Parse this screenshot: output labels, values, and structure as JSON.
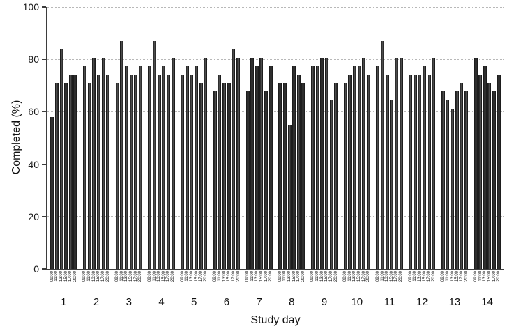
{
  "chart_data": {
    "type": "bar",
    "title": "",
    "xlabel": "Study day",
    "ylabel": "Completed (%)",
    "ylim": [
      0,
      100
    ],
    "yticks": [
      0,
      20,
      40,
      60,
      80,
      100
    ],
    "grid": "horizontal dotted gridlines at every y tick",
    "legend": "none",
    "bar_color": "#333333",
    "background": "#ffffff",
    "times_per_day": [
      "09:00",
      "11:00",
      "13:00",
      "15:00",
      "17:00",
      "20:00"
    ],
    "categories": [
      "1",
      "2",
      "3",
      "4",
      "5",
      "6",
      "7",
      "8",
      "9",
      "10",
      "11",
      "12",
      "13",
      "14"
    ],
    "days": [
      {
        "day": "1",
        "values": [
          58.1,
          71.0,
          83.9,
          71.0,
          74.2,
          74.2
        ]
      },
      {
        "day": "2",
        "values": [
          77.4,
          71.0,
          80.6,
          74.2,
          80.6,
          74.2
        ]
      },
      {
        "day": "3",
        "values": [
          71.0,
          87.1,
          77.4,
          74.2,
          74.2,
          77.4
        ]
      },
      {
        "day": "4",
        "values": [
          77.4,
          87.1,
          74.2,
          77.4,
          74.2,
          80.6
        ]
      },
      {
        "day": "5",
        "values": [
          74.2,
          77.4,
          74.2,
          77.4,
          71.0,
          80.6
        ]
      },
      {
        "day": "6",
        "values": [
          67.7,
          74.2,
          71.0,
          71.0,
          83.9,
          80.6
        ]
      },
      {
        "day": "7",
        "values": [
          67.7,
          80.6,
          77.4,
          80.6,
          67.7,
          77.4
        ]
      },
      {
        "day": "8",
        "values": [
          71.0,
          71.0,
          54.8,
          77.4,
          74.2,
          71.0
        ]
      },
      {
        "day": "9",
        "values": [
          77.4,
          77.4,
          80.6,
          80.6,
          64.5,
          71.0
        ]
      },
      {
        "day": "10",
        "values": [
          71.0,
          74.2,
          77.4,
          77.4,
          80.6,
          74.2
        ]
      },
      {
        "day": "11",
        "values": [
          77.4,
          87.1,
          74.2,
          64.5,
          80.6,
          80.6
        ]
      },
      {
        "day": "12",
        "values": [
          74.2,
          74.2,
          74.2,
          77.4,
          74.2,
          80.6
        ]
      },
      {
        "day": "13",
        "values": [
          67.7,
          64.5,
          61.3,
          67.7,
          71.0,
          67.7
        ]
      },
      {
        "day": "14",
        "values": [
          80.6,
          74.2,
          77.4,
          71.0,
          67.7,
          74.2
        ]
      }
    ]
  }
}
